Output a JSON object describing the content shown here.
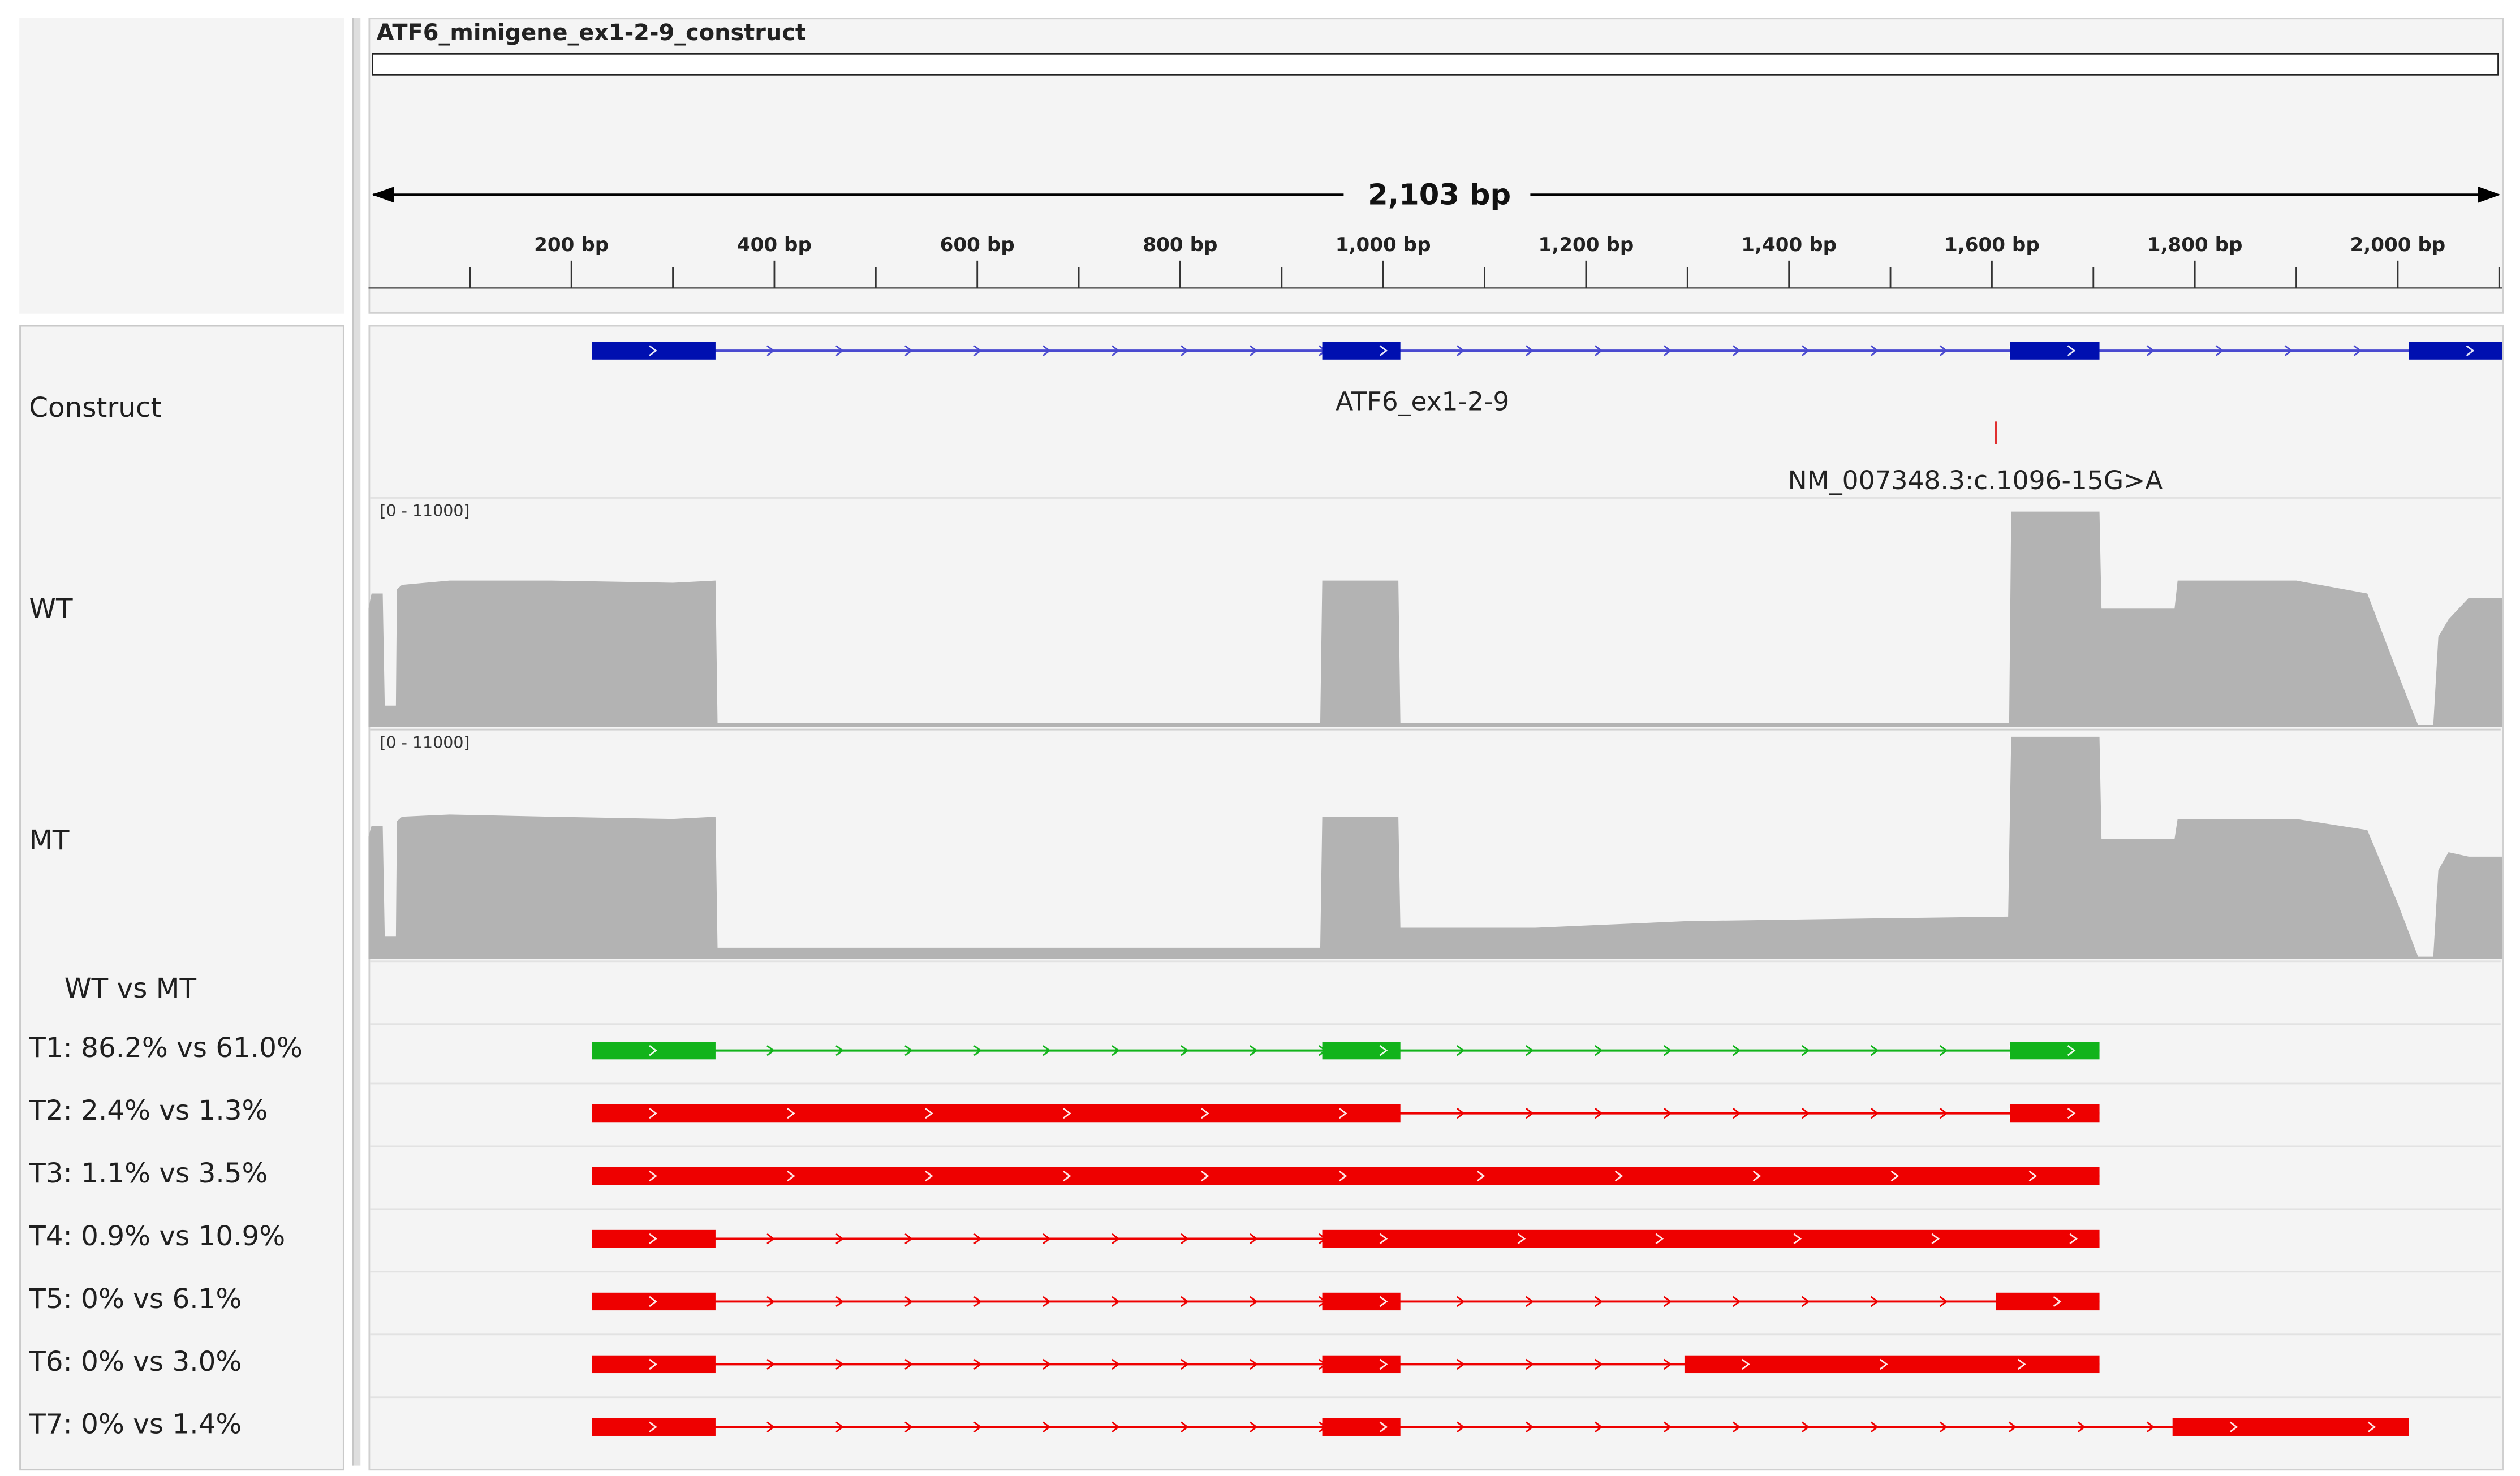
{
  "reference": {
    "name": "ATF6_minigene_ex1-2-9_construct",
    "span_label": "2,103 bp",
    "length_bp": 2103,
    "ticks": [
      {
        "bp": 200,
        "label": "200 bp"
      },
      {
        "bp": 400,
        "label": "400 bp"
      },
      {
        "bp": 600,
        "label": "600 bp"
      },
      {
        "bp": 800,
        "label": "800 bp"
      },
      {
        "bp": 1000,
        "label": "1,000 bp"
      },
      {
        "bp": 1200,
        "label": "1,200 bp"
      },
      {
        "bp": 1400,
        "label": "1,400 bp"
      },
      {
        "bp": 1600,
        "label": "1,600 bp"
      },
      {
        "bp": 1800,
        "label": "1,800 bp"
      },
      {
        "bp": 2000,
        "label": "2,000 bp"
      }
    ]
  },
  "tracks": {
    "construct": {
      "label": "Construct",
      "gene_name": "ATF6_ex1-2-9",
      "color": "#0010b0",
      "exons": [
        [
          220,
          342
        ],
        [
          940,
          1017
        ],
        [
          1618,
          1706
        ],
        [
          2011,
          2103
        ]
      ]
    },
    "variant": {
      "label": "NM_007348.3:c.1096-15G>A",
      "position_bp": 1604,
      "color": "#e03030"
    },
    "wt": {
      "label": "WT",
      "range": "[0 - 11000]"
    },
    "mt": {
      "label": "MT",
      "range": "[0 - 11000]"
    },
    "comparison_header": "WT vs MT",
    "transcripts": [
      {
        "label": "T1: 86.2% vs 61.0%",
        "color": "#12b31b",
        "exons": [
          [
            220,
            342
          ],
          [
            940,
            1017
          ],
          [
            1618,
            1706
          ]
        ]
      },
      {
        "label": "T2: 2.4% vs 1.3%",
        "color": "#ee0000",
        "exons": [
          [
            220,
            1017
          ],
          [
            1618,
            1706
          ]
        ]
      },
      {
        "label": "T3: 1.1% vs 3.5%",
        "color": "#ee0000",
        "exons": [
          [
            220,
            1706
          ]
        ]
      },
      {
        "label": "T4: 0.9% vs 10.9%",
        "color": "#ee0000",
        "exons": [
          [
            220,
            342
          ],
          [
            940,
            1706
          ]
        ]
      },
      {
        "label": "T5: 0% vs 6.1%",
        "color": "#ee0000",
        "exons": [
          [
            220,
            342
          ],
          [
            940,
            1017
          ],
          [
            1604,
            1706
          ]
        ]
      },
      {
        "label": "T6: 0% vs 3.0%",
        "color": "#ee0000",
        "exons": [
          [
            220,
            342
          ],
          [
            940,
            1017
          ],
          [
            1297,
            1706
          ]
        ]
      },
      {
        "label": "T7: 0% vs 1.4%",
        "color": "#ee0000",
        "exons": [
          [
            220,
            342
          ],
          [
            940,
            1017
          ],
          [
            1778,
            2011
          ]
        ]
      }
    ]
  },
  "colors": {
    "coverage": "#b3b3b3",
    "intron_blue": "#4a4ad0"
  }
}
